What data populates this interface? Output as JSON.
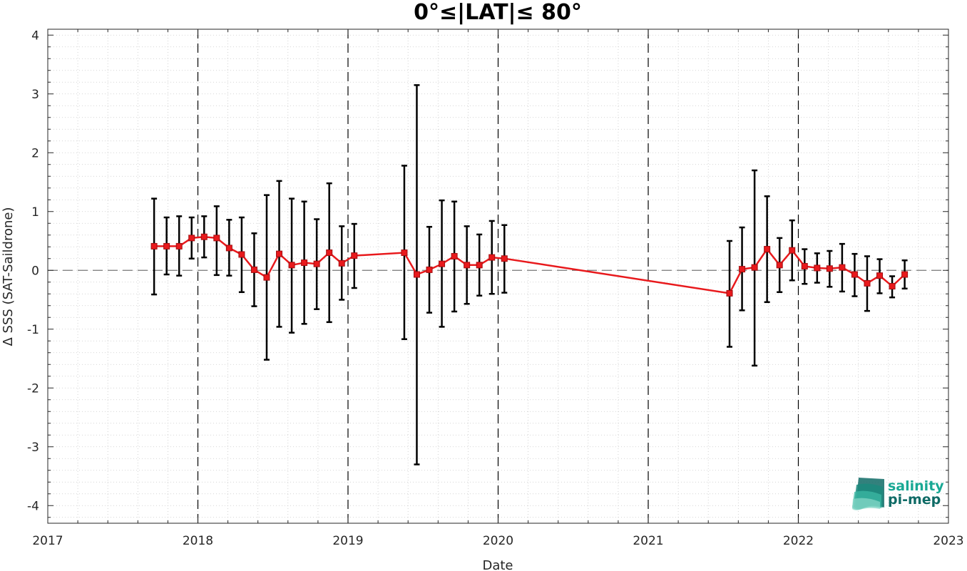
{
  "chart_data": {
    "type": "line",
    "title": "0°≤|LAT|≤ 80°",
    "xlabel": "Date",
    "ylabel": "Δ SSS (SAT-Saildrone)",
    "xlim": [
      2017,
      2023
    ],
    "ylim": [
      -4.3,
      4.1
    ],
    "x_ticks": [
      "2017",
      "2018",
      "2019",
      "2020",
      "2021",
      "2022",
      "2023"
    ],
    "y_ticks": [
      "4",
      "3",
      "2",
      "1",
      "0",
      "-1",
      "-2",
      "-3",
      "-4"
    ],
    "grid": "dotted minor",
    "year_markers": [
      2018,
      2019,
      2020,
      2021,
      2022
    ],
    "zero_line": 0,
    "line_color": "#e8191c",
    "errorbar_color": "#000000",
    "series": [
      {
        "points": [
          {
            "x": "2017-09",
            "y": 0.41,
            "low": -0.41,
            "high": 1.22
          },
          {
            "x": "2017-10",
            "y": 0.41,
            "low": -0.07,
            "high": 0.9
          },
          {
            "x": "2017-11",
            "y": 0.41,
            "low": -0.09,
            "high": 0.92
          },
          {
            "x": "2017-12",
            "y": 0.55,
            "low": 0.2,
            "high": 0.9
          },
          {
            "x": "2018-01",
            "y": 0.57,
            "low": 0.22,
            "high": 0.92
          },
          {
            "x": "2018-02",
            "y": 0.55,
            "low": -0.08,
            "high": 1.09
          },
          {
            "x": "2018-03",
            "y": 0.38,
            "low": -0.09,
            "high": 0.86
          },
          {
            "x": "2018-04",
            "y": 0.27,
            "low": -0.37,
            "high": 0.9
          },
          {
            "x": "2018-05",
            "y": 0.01,
            "low": -0.61,
            "high": 0.63
          },
          {
            "x": "2018-06",
            "y": -0.12,
            "low": -1.52,
            "high": 1.28
          },
          {
            "x": "2018-07",
            "y": 0.28,
            "low": -0.96,
            "high": 1.52
          },
          {
            "x": "2018-08",
            "y": 0.09,
            "low": -1.06,
            "high": 1.22
          },
          {
            "x": "2018-09",
            "y": 0.13,
            "low": -0.91,
            "high": 1.17
          },
          {
            "x": "2018-10",
            "y": 0.11,
            "low": -0.66,
            "high": 0.87
          },
          {
            "x": "2018-11",
            "y": 0.3,
            "low": -0.88,
            "high": 1.48
          },
          {
            "x": "2018-12",
            "y": 0.12,
            "low": -0.5,
            "high": 0.75
          },
          {
            "x": "2019-01",
            "y": 0.25,
            "low": -0.3,
            "high": 0.79
          },
          {
            "x": "2019-05",
            "y": 0.3,
            "low": -1.17,
            "high": 1.78
          },
          {
            "x": "2019-06",
            "y": -0.07,
            "low": -3.3,
            "high": 3.15
          },
          {
            "x": "2019-07",
            "y": 0.01,
            "low": -0.72,
            "high": 0.74
          },
          {
            "x": "2019-08",
            "y": 0.11,
            "low": -0.96,
            "high": 1.19
          },
          {
            "x": "2019-09",
            "y": 0.24,
            "low": -0.7,
            "high": 1.17
          },
          {
            "x": "2019-10",
            "y": 0.09,
            "low": -0.57,
            "high": 0.75
          },
          {
            "x": "2019-11",
            "y": 0.09,
            "low": -0.43,
            "high": 0.61
          },
          {
            "x": "2019-12",
            "y": 0.22,
            "low": -0.4,
            "high": 0.84
          },
          {
            "x": "2020-01",
            "y": 0.2,
            "low": -0.38,
            "high": 0.77
          },
          {
            "x": "2021-07",
            "y": -0.39,
            "low": -1.3,
            "high": 0.5
          },
          {
            "x": "2021-08",
            "y": 0.02,
            "low": -0.68,
            "high": 0.73
          },
          {
            "x": "2021-09",
            "y": 0.05,
            "low": -1.62,
            "high": 1.7
          },
          {
            "x": "2021-10",
            "y": 0.36,
            "low": -0.54,
            "high": 1.26
          },
          {
            "x": "2021-11",
            "y": 0.09,
            "low": -0.37,
            "high": 0.55
          },
          {
            "x": "2021-12",
            "y": 0.34,
            "low": -0.17,
            "high": 0.85
          },
          {
            "x": "2022-01",
            "y": 0.07,
            "low": -0.23,
            "high": 0.36
          },
          {
            "x": "2022-02",
            "y": 0.04,
            "low": -0.21,
            "high": 0.29
          },
          {
            "x": "2022-03",
            "y": 0.03,
            "low": -0.28,
            "high": 0.33
          },
          {
            "x": "2022-04",
            "y": 0.05,
            "low": -0.36,
            "high": 0.45
          },
          {
            "x": "2022-05",
            "y": -0.07,
            "low": -0.44,
            "high": 0.28
          },
          {
            "x": "2022-06",
            "y": -0.22,
            "low": -0.69,
            "high": 0.24
          },
          {
            "x": "2022-07",
            "y": -0.09,
            "low": -0.39,
            "high": 0.19
          },
          {
            "x": "2022-08",
            "y": -0.27,
            "low": -0.46,
            "high": -0.1
          },
          {
            "x": "2022-09",
            "y": -0.07,
            "low": -0.31,
            "high": 0.17
          }
        ]
      }
    ]
  },
  "logo": {
    "line1": "salinity",
    "line2": "pi-mep",
    "color1": "#19a894",
    "color2": "#0f6b66"
  }
}
